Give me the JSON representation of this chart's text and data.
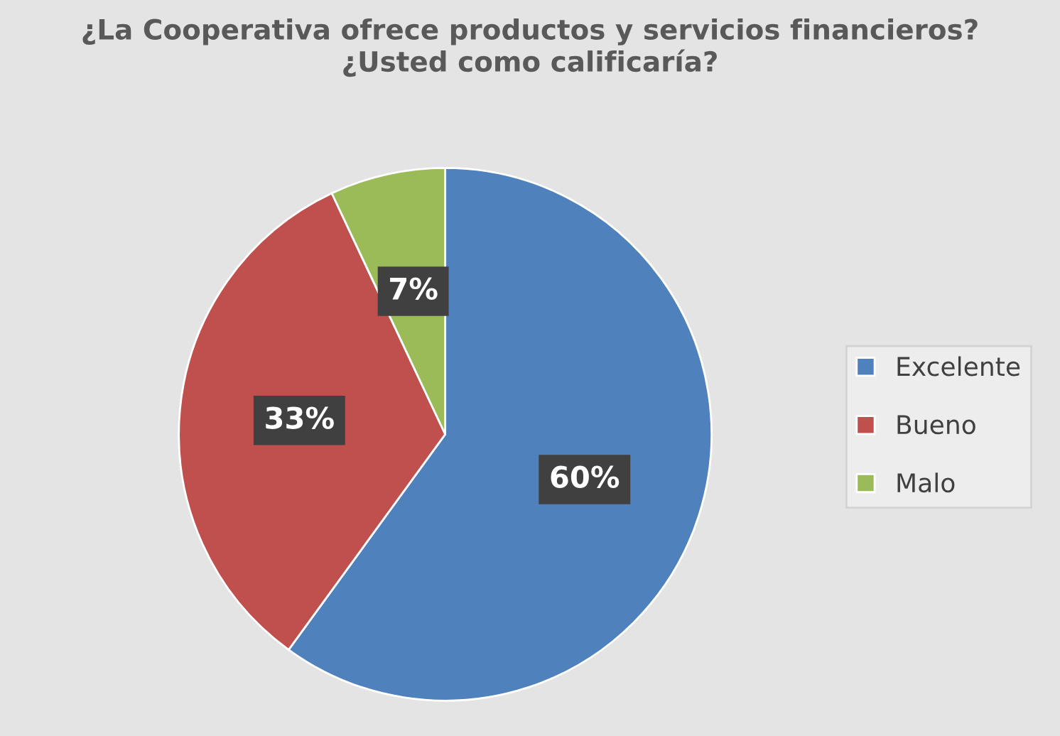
{
  "chart_data": {
    "type": "pie",
    "title": "¿La Cooperativa ofrece productos y servicios financieros?\n¿Usted como calificaría?",
    "categories": [
      "Excelente",
      "Bueno",
      "Malo"
    ],
    "values": [
      60,
      33,
      7
    ],
    "colors": [
      "#4f81bd",
      "#c0504d",
      "#9bbb59"
    ],
    "value_labels": [
      "60%",
      "33%",
      "7%"
    ],
    "legend": "right"
  }
}
